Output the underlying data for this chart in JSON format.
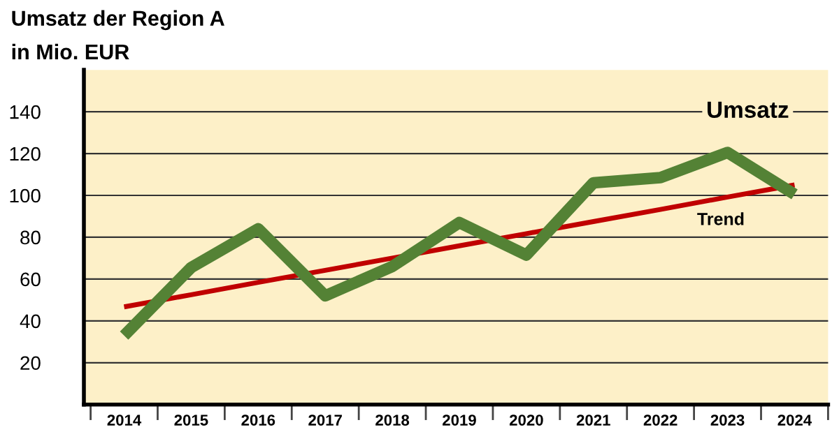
{
  "chart_data": {
    "type": "line",
    "title": "Umsatz der Region A",
    "subtitle": "in Mio. EUR",
    "categories": [
      "2014",
      "2015",
      "2016",
      "2017",
      "2018",
      "2019",
      "2020",
      "2021",
      "2022",
      "2023",
      "2024"
    ],
    "series": [
      {
        "name": "Umsatz",
        "color": "#548235",
        "values": [
          33,
          65.5,
          84,
          52,
          66,
          87,
          71.5,
          106,
          108.5,
          120.5,
          100.5
        ]
      },
      {
        "name": "Trend",
        "color": "#c00000",
        "values": [
          46.7,
          52.5,
          58.4,
          64.2,
          70,
          75.9,
          81.7,
          87.5,
          93.3,
          99.2,
          105
        ]
      }
    ],
    "ylim": [
      0,
      160
    ],
    "yticks": [
      20,
      40,
      60,
      80,
      100,
      120,
      140
    ],
    "grid": "y",
    "legend": false,
    "marker": "none",
    "line_style": "solid"
  }
}
